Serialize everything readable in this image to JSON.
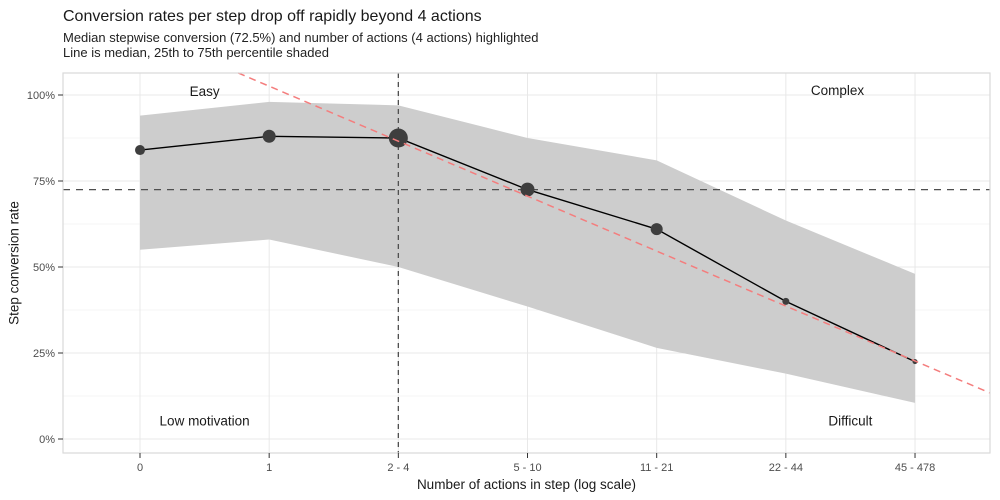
{
  "header": {
    "title": "Conversion rates per step drop off rapidly beyond 4 actions",
    "subtitle_line1": "Median stepwise conversion (72.5%) and number of actions (4 actions) highlighted",
    "subtitle_line2": "Line is median, 25th to 75th percentile shaded"
  },
  "chart_data": {
    "type": "line",
    "title": "Conversion rates per step drop off rapidly beyond 4 actions",
    "subtitle": [
      "Median stepwise conversion (72.5%) and number of actions (4 actions) highlighted",
      "Line is median, 25th to 75th percentile shaded"
    ],
    "xlabel": "Number of actions in step (log scale)",
    "ylabel": "Step conversion rate",
    "categories": [
      "0",
      "1",
      "2 - 4",
      "5 - 10",
      "11 - 21",
      "22 - 44",
      "45 - 478"
    ],
    "series": [
      {
        "name": "median",
        "values": [
          84,
          88,
          87.5,
          72.5,
          61,
          40,
          22.5
        ]
      },
      {
        "name": "p25",
        "values": [
          55,
          58,
          50,
          38.5,
          26.5,
          19,
          10.5
        ]
      },
      {
        "name": "p75",
        "values": [
          94,
          98,
          97,
          87.5,
          81,
          63.5,
          48
        ]
      }
    ],
    "marker_radius_px": [
      5,
      6.5,
      9.5,
      7,
      6,
      3.5,
      2.5
    ],
    "highlight": {
      "category": "2 - 4",
      "index": 2,
      "median_pct": 87.5
    },
    "y_axis": {
      "ticks": [
        0,
        25,
        50,
        75,
        100
      ],
      "tick_labels": [
        "0%",
        "25%",
        "50%",
        "75%",
        "100%"
      ],
      "minor_ticks": [
        12.5,
        37.5,
        62.5,
        87.5
      ],
      "range_pct": [
        -4,
        106.4
      ]
    },
    "reference_lines": {
      "horizontal_pct": 72.5,
      "vertical_category_index": 2
    },
    "trend_line": {
      "from": {
        "idx": 0.76,
        "pct": 106.4
      },
      "to": {
        "idx": 6.58,
        "pct": 13.4
      }
    },
    "annotations": [
      {
        "label": "Easy",
        "idx": 0.5,
        "pct": 101
      },
      {
        "label": "Complex",
        "idx": 5.4,
        "pct": 101.3
      },
      {
        "label": "Low motivation",
        "idx": 0.5,
        "pct": 5.2
      },
      {
        "label": "Difficult",
        "idx": 5.5,
        "pct": 5.2
      }
    ],
    "legend": "none",
    "grid": "on",
    "colors": {
      "band": "#cdcdcd",
      "median_line": "#000000",
      "point": "#3e3e3e",
      "trend": "#f47d7d",
      "reference": "#4f4f4f",
      "grid_major": "#e8e8e8",
      "grid_minor": "#f4f4f4",
      "panel_border": "#d9d9d9",
      "tick_label": "#4d4d4d",
      "tick_mark": "#333333",
      "text": "#1a1a1a"
    }
  }
}
